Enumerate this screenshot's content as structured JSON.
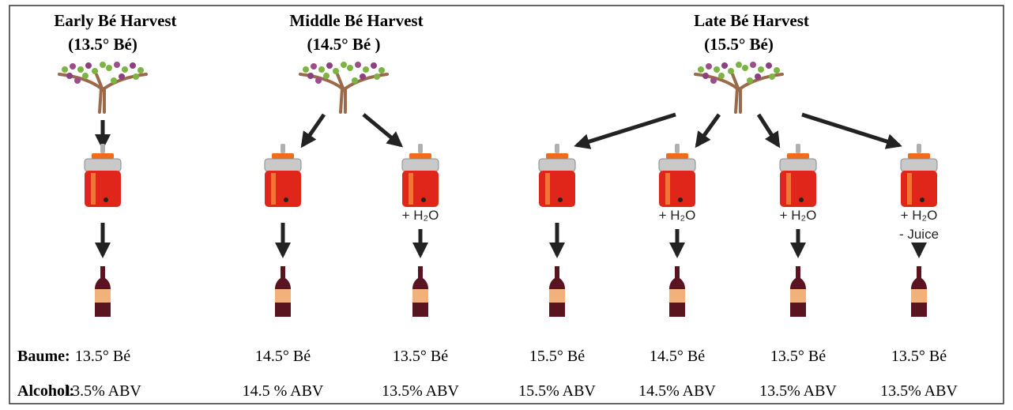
{
  "harvests": [
    {
      "title": "Early  Bé Harvest",
      "degree": "(13.5° Bé)",
      "columns": [
        {
          "baume": "13.5° Bé",
          "alcohol": "13.5% ABV"
        }
      ]
    },
    {
      "title": "Middle  Bé Harvest",
      "degree": "(14.5° Bé )",
      "columns": [
        {
          "baume": "14.5°  Bé",
          "alcohol": "14.5 % ABV"
        },
        {
          "notes": [
            "+ H₂O"
          ],
          "baume": "13.5° Bé",
          "alcohol": "13.5% ABV"
        }
      ]
    },
    {
      "title": "Late  Bé Harvest",
      "degree": "(15.5° Bé)",
      "columns": [
        {
          "baume": "15.5° Bé",
          "alcohol": "15.5% ABV"
        },
        {
          "notes": [
            "+ H₂O"
          ],
          "baume": "14.5° Bé",
          "alcohol": "14.5%  ABV"
        },
        {
          "notes": [
            "+ H₂O"
          ],
          "baume": "13.5° Bé",
          "alcohol": "13.5% ABV"
        },
        {
          "notes": [
            "+ H₂O",
            "- Juice"
          ],
          "baume": "13.5° Bé",
          "alcohol": "13.5% ABV"
        }
      ]
    }
  ],
  "row_labels": {
    "baume": "Baume:",
    "alcohol": "Alcohol:"
  }
}
